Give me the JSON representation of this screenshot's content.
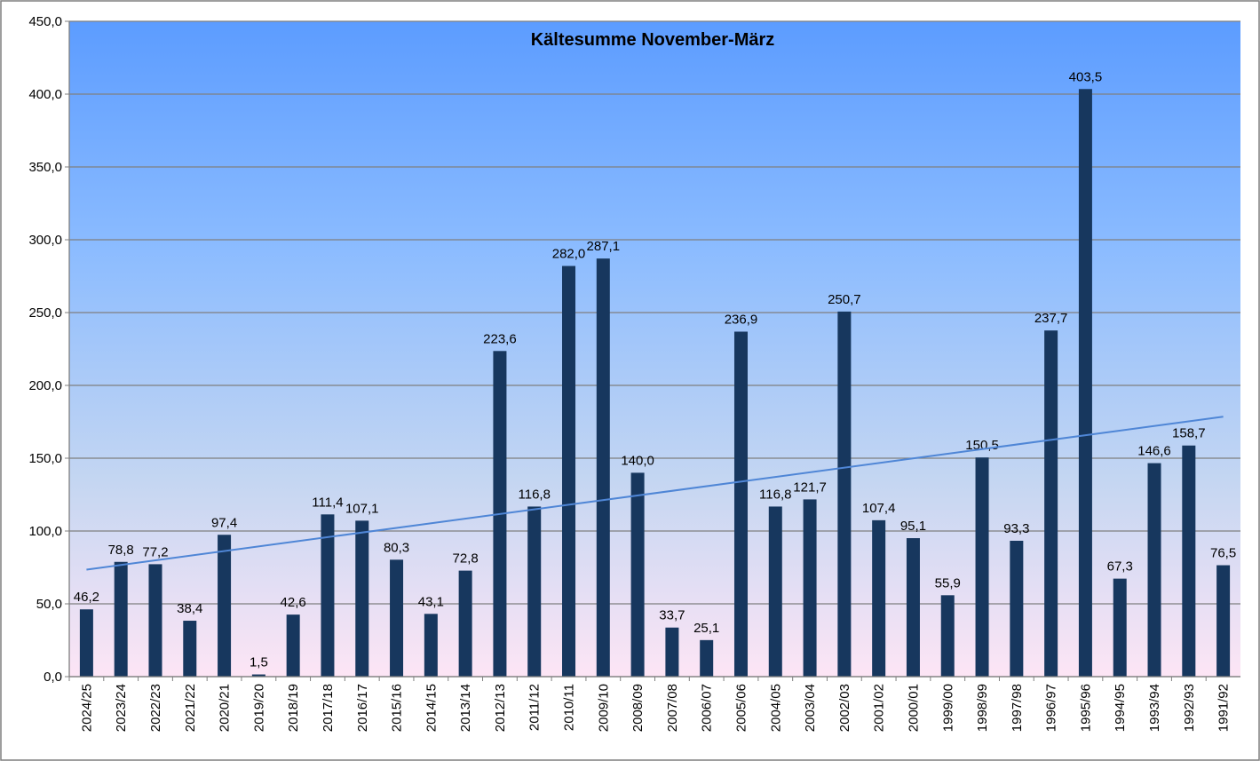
{
  "chart_data": {
    "type": "bar",
    "title": "Kältesumme November-März",
    "categories": [
      "2024/25",
      "2023/24",
      "2022/23",
      "2021/22",
      "2020/21",
      "2019/20",
      "2018/19",
      "2017/18",
      "2016/17",
      "2015/16",
      "2014/15",
      "2013/14",
      "2012/13",
      "2011/12",
      "2010/11",
      "2009/10",
      "2008/09",
      "2007/08",
      "2006/07",
      "2005/06",
      "2004/05",
      "2003/04",
      "2002/03",
      "2001/02",
      "2000/01",
      "1999/00",
      "1998/99",
      "1997/98",
      "1996/97",
      "1995/96",
      "1994/95",
      "1993/94",
      "1992/93",
      "1991/92"
    ],
    "values": [
      46.2,
      78.8,
      77.2,
      38.4,
      97.4,
      1.5,
      42.6,
      111.4,
      107.1,
      80.3,
      43.1,
      72.8,
      223.6,
      116.8,
      282.0,
      287.1,
      140.0,
      33.7,
      25.1,
      236.9,
      116.8,
      121.7,
      250.7,
      107.4,
      95.1,
      55.9,
      150.5,
      93.3,
      237.7,
      403.5,
      67.3,
      146.6,
      158.7,
      76.5
    ],
    "value_labels": [
      "46,2",
      "78,8",
      "77,2",
      "38,4",
      "97,4",
      "1,5",
      "42,6",
      "111,4",
      "107,1",
      "80,3",
      "43,1",
      "72,8",
      "223,6",
      "116,8",
      "282,0",
      "287,1",
      "140,0",
      "33,7",
      "25,1",
      "236,9",
      "116,8",
      "121,7",
      "250,7",
      "107,4",
      "95,1",
      "55,9",
      "150,5",
      "93,3",
      "237,7",
      "403,5",
      "67,3",
      "146,6",
      "158,7",
      "76,5"
    ],
    "color": "#17375e",
    "trendline": {
      "color": "#4f86d6",
      "values": [
        73.5,
        178.5
      ]
    },
    "ylim": [
      0,
      450
    ],
    "yticks": [
      {
        "value": 0,
        "label": "0,0"
      },
      {
        "value": 50,
        "label": "50,0"
      },
      {
        "value": 100,
        "label": "100,0"
      },
      {
        "value": 150,
        "label": "150,0"
      },
      {
        "value": 200,
        "label": "200,0"
      },
      {
        "value": 250,
        "label": "250,0"
      },
      {
        "value": 300,
        "label": "300,0"
      },
      {
        "value": 350,
        "label": "350,0"
      },
      {
        "value": 400,
        "label": "400,0"
      },
      {
        "value": 450,
        "label": "450,0"
      }
    ],
    "grid": true
  }
}
